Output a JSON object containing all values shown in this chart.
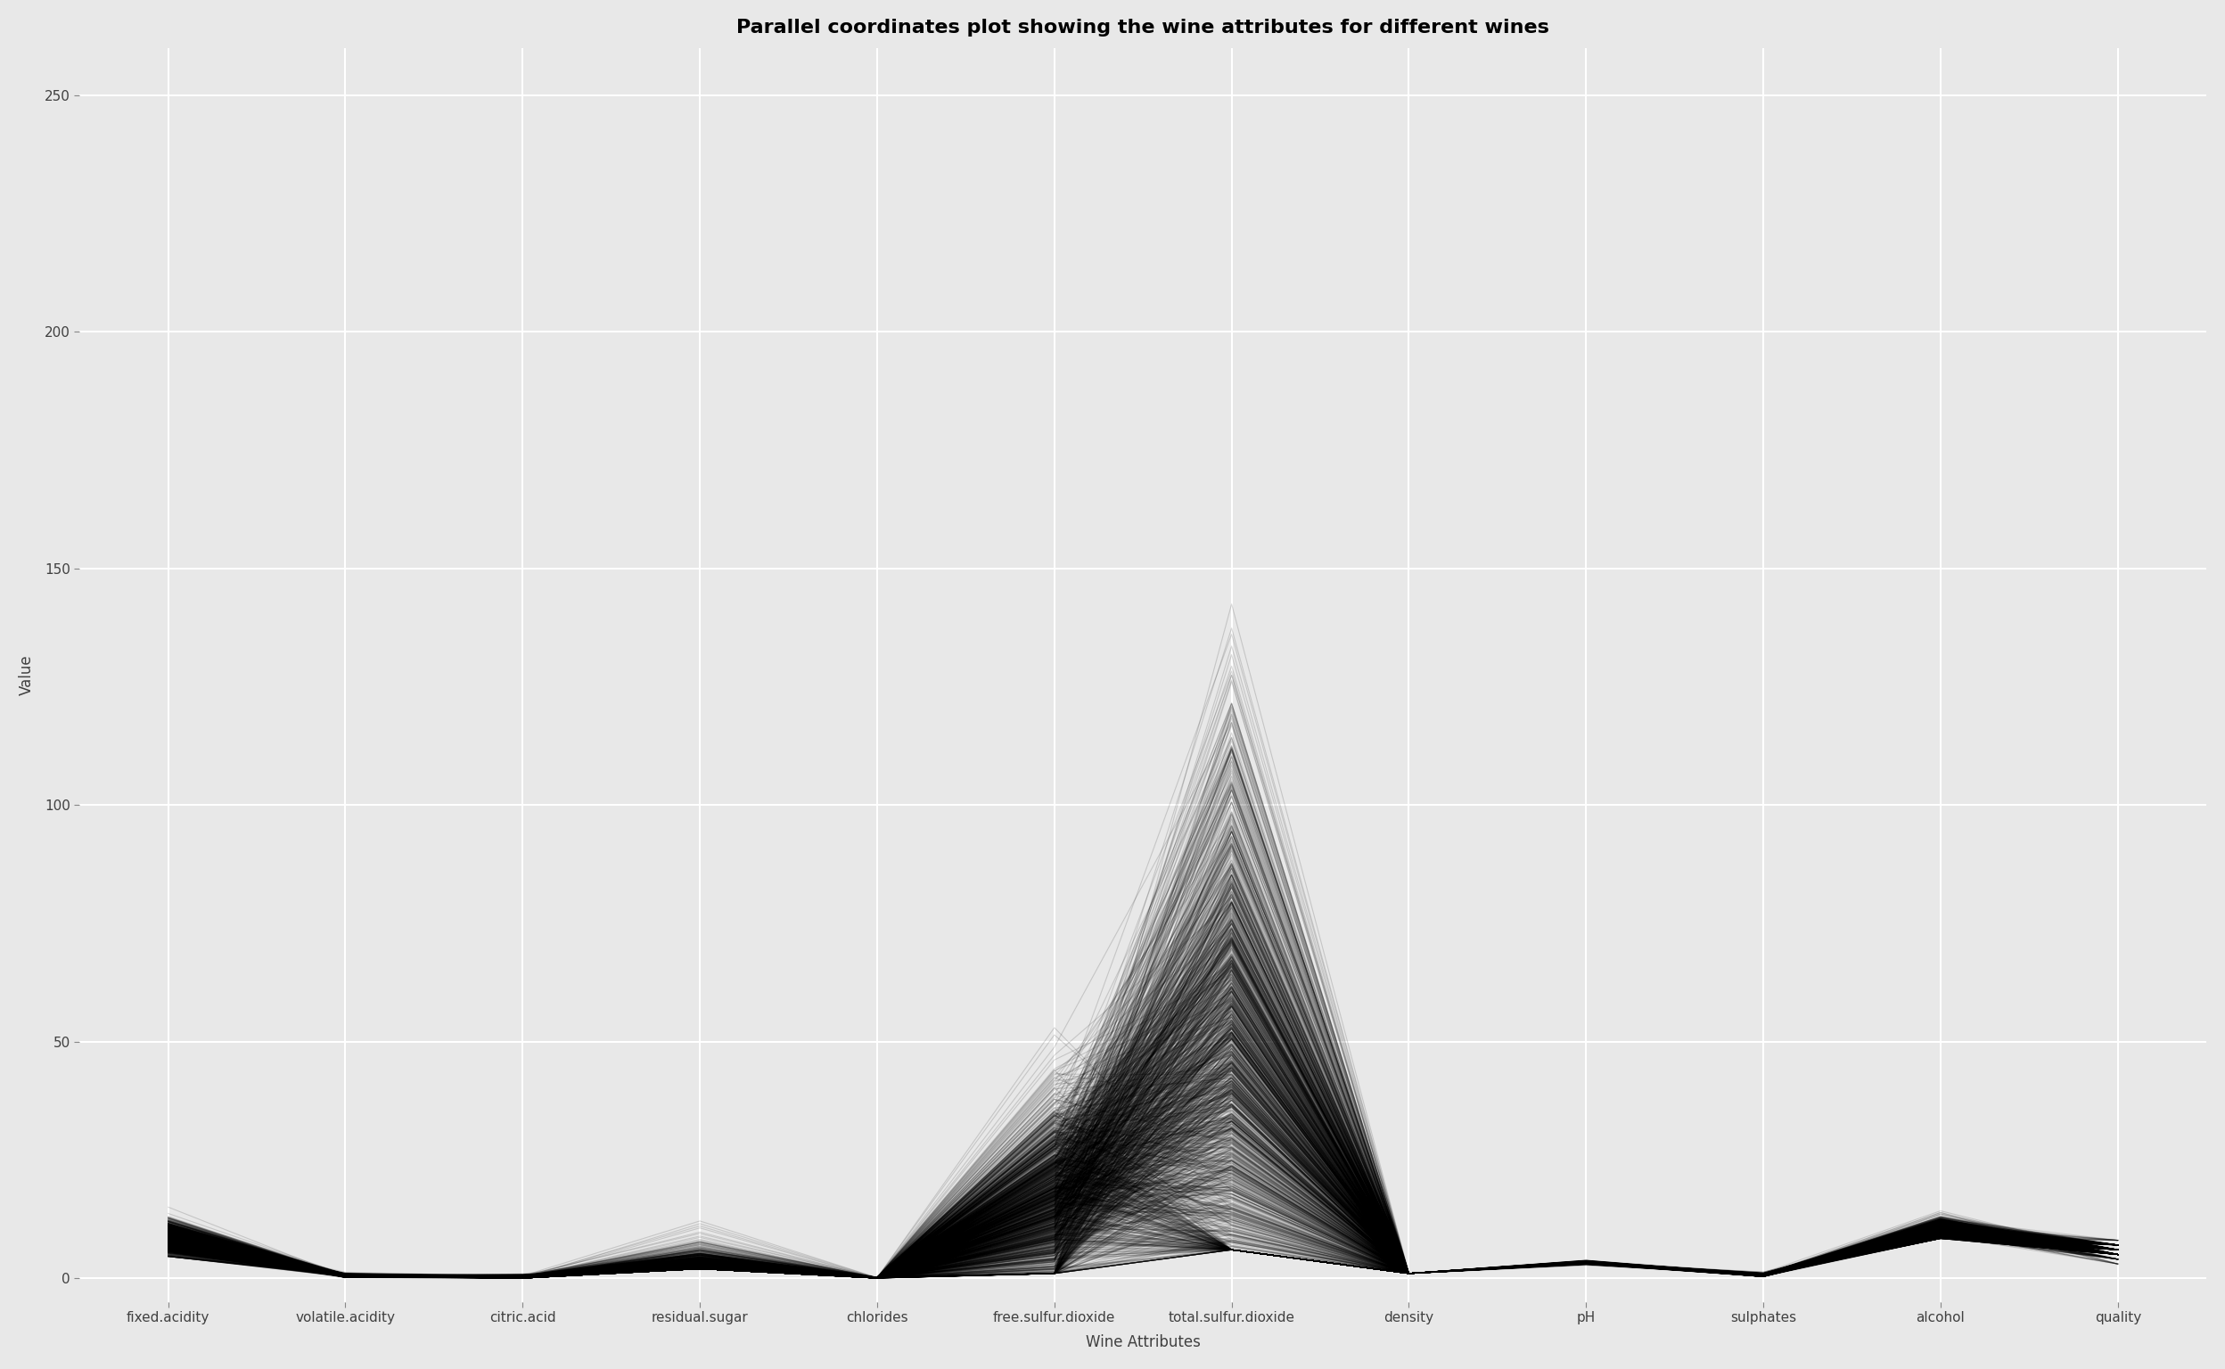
{
  "title": "Parallel coordinates plot showing the wine attributes for different wines",
  "xlabel": "Wine Attributes",
  "ylabel": "Value",
  "columns": [
    "fixed.acidity",
    "volatile.acidity",
    "citric.acid",
    "residual.sugar",
    "chlorides",
    "free.sulfur.dioxide",
    "total.sulfur.dioxide",
    "density",
    "pH",
    "sulphates",
    "alcohol",
    "quality"
  ],
  "background_color": "#e8e8e8",
  "line_color": "black",
  "line_alpha": 0.15,
  "line_width": 0.8,
  "ylim": [
    -5,
    260
  ],
  "yticks": [
    0,
    50,
    100,
    150,
    200,
    250
  ],
  "title_fontsize": 16,
  "axis_label_fontsize": 12,
  "tick_fontsize": 11,
  "grid_color": "white",
  "grid_linewidth": 1.5
}
